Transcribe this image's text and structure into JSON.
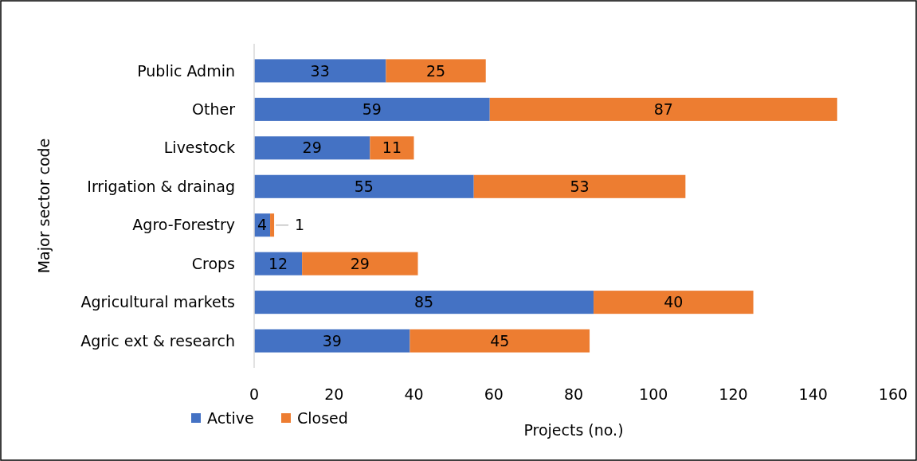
{
  "chart_data": {
    "type": "bar",
    "orientation": "horizontal",
    "stacked": true,
    "xlabel": "Projects (no.)",
    "ylabel": "Major sector code",
    "categories": [
      "Public Admin",
      "Other",
      "Livestock",
      "Irrigation & drainag",
      "Agro-Forestry",
      "Crops",
      "Agricultural markets",
      "Agric ext & research"
    ],
    "series": [
      {
        "name": "Active",
        "color": "#4472c4",
        "values": [
          33,
          59,
          29,
          55,
          4,
          12,
          85,
          39
        ]
      },
      {
        "name": "Closed",
        "color": "#ed7d31",
        "values": [
          25,
          87,
          11,
          53,
          1,
          29,
          40,
          45
        ]
      }
    ],
    "xlim": [
      0,
      160
    ],
    "xticks": [
      0,
      20,
      40,
      60,
      80,
      100,
      120,
      140,
      160
    ],
    "data_labels": true,
    "legend": "bottom left"
  }
}
